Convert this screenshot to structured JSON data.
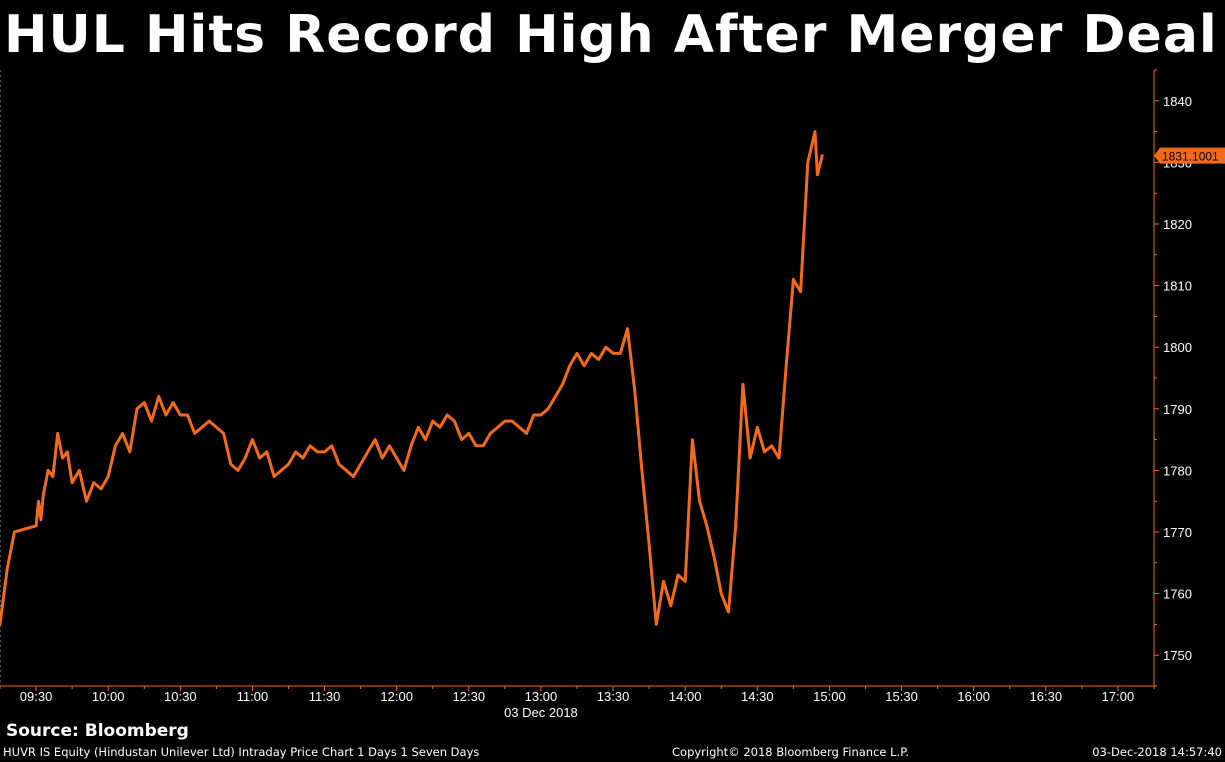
{
  "title": "HUL Hits Record High After Merger Deal",
  "source": "Source: Bloomberg",
  "footer": {
    "left": "HUVR IS Equity (Hindustan Unilever Ltd) Intraday Price Chart 1 Days 1 Seven Days",
    "center": "Copyright© 2018 Bloomberg Finance L.P.",
    "right": "03-Dec-2018 14:57:40"
  },
  "colors": {
    "background": "#000000",
    "line": "#f26a1c",
    "axis": "#f26a1c",
    "text": "#ffffff",
    "grid": "#555555"
  },
  "chart_data": {
    "type": "line",
    "title": "HUL Hits Record High After Merger Deal",
    "xlabel": "03 Dec 2018",
    "ylabel": "",
    "x_ticks": [
      "09:30",
      "10:00",
      "10:30",
      "11:00",
      "11:30",
      "12:00",
      "12:30",
      "13:00",
      "13:30",
      "14:00",
      "14:30",
      "15:00",
      "15:30",
      "16:00",
      "16:30",
      "17:00"
    ],
    "y_ticks": [
      1750,
      1760,
      1770,
      1780,
      1790,
      1800,
      1810,
      1820,
      1830,
      1840
    ],
    "ylim": [
      1745,
      1845
    ],
    "xlim": [
      "09:15",
      "17:15"
    ],
    "last_value_label": "1831.1001",
    "grid": false,
    "series": [
      {
        "values": [
          [
            "09:15",
            1755
          ],
          [
            "09:18",
            1764
          ],
          [
            "09:21",
            1770
          ],
          [
            "09:30",
            1771
          ],
          [
            "09:31",
            1775
          ],
          [
            "09:32",
            1772
          ],
          [
            "09:33",
            1776
          ],
          [
            "09:35",
            1780
          ],
          [
            "09:37",
            1779
          ],
          [
            "09:39",
            1786
          ],
          [
            "09:41",
            1782
          ],
          [
            "09:43",
            1783
          ],
          [
            "09:45",
            1778
          ],
          [
            "09:48",
            1780
          ],
          [
            "09:51",
            1775
          ],
          [
            "09:54",
            1778
          ],
          [
            "09:57",
            1777
          ],
          [
            "10:00",
            1779
          ],
          [
            "10:03",
            1784
          ],
          [
            "10:06",
            1786
          ],
          [
            "10:09",
            1783
          ],
          [
            "10:12",
            1790
          ],
          [
            "10:15",
            1791
          ],
          [
            "10:18",
            1788
          ],
          [
            "10:21",
            1792
          ],
          [
            "10:24",
            1789
          ],
          [
            "10:27",
            1791
          ],
          [
            "10:30",
            1789
          ],
          [
            "10:33",
            1789
          ],
          [
            "10:36",
            1786
          ],
          [
            "10:39",
            1787
          ],
          [
            "10:42",
            1788
          ],
          [
            "10:45",
            1787
          ],
          [
            "10:48",
            1786
          ],
          [
            "10:51",
            1781
          ],
          [
            "10:54",
            1780
          ],
          [
            "10:57",
            1782
          ],
          [
            "11:00",
            1785
          ],
          [
            "11:03",
            1782
          ],
          [
            "11:06",
            1783
          ],
          [
            "11:09",
            1779
          ],
          [
            "11:12",
            1780
          ],
          [
            "11:15",
            1781
          ],
          [
            "11:18",
            1783
          ],
          [
            "11:21",
            1782
          ],
          [
            "11:24",
            1784
          ],
          [
            "11:27",
            1783
          ],
          [
            "11:30",
            1783
          ],
          [
            "11:33",
            1784
          ],
          [
            "11:36",
            1781
          ],
          [
            "11:39",
            1780
          ],
          [
            "11:42",
            1779
          ],
          [
            "11:45",
            1781
          ],
          [
            "11:48",
            1783
          ],
          [
            "11:51",
            1785
          ],
          [
            "11:54",
            1782
          ],
          [
            "11:57",
            1784
          ],
          [
            "12:00",
            1782
          ],
          [
            "12:03",
            1780
          ],
          [
            "12:06",
            1784
          ],
          [
            "12:09",
            1787
          ],
          [
            "12:12",
            1785
          ],
          [
            "12:15",
            1788
          ],
          [
            "12:18",
            1787
          ],
          [
            "12:21",
            1789
          ],
          [
            "12:24",
            1788
          ],
          [
            "12:27",
            1785
          ],
          [
            "12:30",
            1786
          ],
          [
            "12:33",
            1784
          ],
          [
            "12:36",
            1784
          ],
          [
            "12:39",
            1786
          ],
          [
            "12:42",
            1787
          ],
          [
            "12:45",
            1788
          ],
          [
            "12:48",
            1788
          ],
          [
            "12:51",
            1787
          ],
          [
            "12:54",
            1786
          ],
          [
            "12:57",
            1789
          ],
          [
            "13:00",
            1789
          ],
          [
            "13:03",
            1790
          ],
          [
            "13:06",
            1792
          ],
          [
            "13:09",
            1794
          ],
          [
            "13:12",
            1797
          ],
          [
            "13:15",
            1799
          ],
          [
            "13:18",
            1797
          ],
          [
            "13:21",
            1799
          ],
          [
            "13:24",
            1798
          ],
          [
            "13:27",
            1800
          ],
          [
            "13:30",
            1799
          ],
          [
            "13:33",
            1799
          ],
          [
            "13:36",
            1803
          ],
          [
            "13:39",
            1793
          ],
          [
            "13:42",
            1780
          ],
          [
            "13:45",
            1768
          ],
          [
            "13:48",
            1755
          ],
          [
            "13:51",
            1762
          ],
          [
            "13:54",
            1758
          ],
          [
            "13:57",
            1763
          ],
          [
            "14:00",
            1762
          ],
          [
            "14:03",
            1785
          ],
          [
            "14:06",
            1775
          ],
          [
            "14:09",
            1771
          ],
          [
            "14:12",
            1766
          ],
          [
            "14:15",
            1760
          ],
          [
            "14:18",
            1757
          ],
          [
            "14:21",
            1771
          ],
          [
            "14:24",
            1794
          ],
          [
            "14:27",
            1782
          ],
          [
            "14:30",
            1787
          ],
          [
            "14:33",
            1783
          ],
          [
            "14:36",
            1784
          ],
          [
            "14:39",
            1782
          ],
          [
            "14:42",
            1797
          ],
          [
            "14:45",
            1811
          ],
          [
            "14:48",
            1809
          ],
          [
            "14:51",
            1830
          ],
          [
            "14:54",
            1835
          ],
          [
            "14:55",
            1828
          ],
          [
            "14:57",
            1831.1001
          ]
        ]
      }
    ]
  }
}
